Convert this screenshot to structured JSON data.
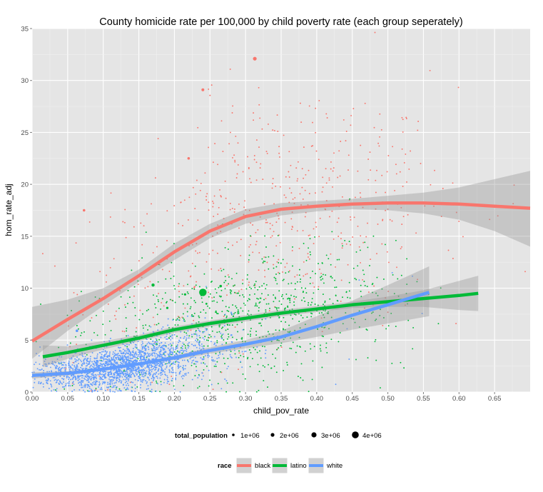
{
  "chart_data": {
    "type": "scatter",
    "title": "County homicide rate per 100,000 by child poverty rate  (each group seperately)",
    "xlabel": "child_pov_rate",
    "ylabel": "hom_rate_adj",
    "xlim": [
      0,
      0.7
    ],
    "ylim": [
      0,
      35
    ],
    "x_ticks": [
      "0.00",
      "0.05",
      "0.10",
      "0.15",
      "0.20",
      "0.25",
      "0.30",
      "0.35",
      "0.40",
      "0.45",
      "0.50",
      "0.55",
      "0.60",
      "0.65"
    ],
    "x_tick_values": [
      0,
      0.05,
      0.1,
      0.15,
      0.2,
      0.25,
      0.3,
      0.35,
      0.4,
      0.45,
      0.5,
      0.55,
      0.6,
      0.65
    ],
    "y_ticks": [
      "0",
      "5",
      "10",
      "15",
      "20",
      "25",
      "30",
      "35"
    ],
    "y_tick_values": [
      0,
      5,
      10,
      15,
      20,
      25,
      30,
      35
    ],
    "grid": true,
    "legend_placement": "bottom",
    "colors": {
      "black": "#F8766D",
      "latino": "#00BA38",
      "white": "#619CFF",
      "panel": "#E5E5E5",
      "ribbon": "#999999"
    },
    "series": [
      {
        "name": "black",
        "color": "#F8766D",
        "smooth": {
          "x": [
            0,
            0.05,
            0.1,
            0.15,
            0.2,
            0.25,
            0.3,
            0.35,
            0.4,
            0.45,
            0.5,
            0.55,
            0.6,
            0.65,
            0.7
          ],
          "y": [
            4.9,
            7.0,
            9.0,
            11.2,
            13.5,
            15.5,
            16.9,
            17.6,
            17.9,
            18.1,
            18.2,
            18.2,
            18.1,
            17.9,
            17.7
          ]
        },
        "band_lower": [
          3.2,
          5.9,
          8.3,
          10.6,
          12.7,
          14.8,
          16.2,
          17.0,
          17.4,
          17.6,
          17.5,
          17.2,
          16.6,
          15.5,
          14.0
        ],
        "band_upper": [
          8.2,
          8.9,
          10.0,
          11.8,
          14.3,
          16.2,
          17.6,
          18.2,
          18.4,
          18.6,
          18.9,
          19.2,
          19.7,
          20.5,
          21.3
        ],
        "highlights": [
          {
            "x": 0.313,
            "y": 32.1,
            "r": 2.6
          },
          {
            "x": 0.24,
            "y": 29.1,
            "r": 2.0
          },
          {
            "x": 0.22,
            "y": 22.5,
            "r": 1.8
          },
          {
            "x": 0.073,
            "y": 17.5,
            "r": 1.8
          }
        ]
      },
      {
        "name": "latino",
        "color": "#00BA38",
        "smooth": {
          "x": [
            0.015,
            0.05,
            0.1,
            0.15,
            0.2,
            0.25,
            0.3,
            0.35,
            0.4,
            0.45,
            0.5,
            0.55,
            0.6,
            0.627
          ],
          "y": [
            3.4,
            3.8,
            4.5,
            5.2,
            6.0,
            6.6,
            7.1,
            7.6,
            8.0,
            8.4,
            8.7,
            9.0,
            9.3,
            9.5
          ]
        },
        "band_lower": [
          2.4,
          3.2,
          4.1,
          4.9,
          5.7,
          6.3,
          6.8,
          7.3,
          7.7,
          8.1,
          8.2,
          8.2,
          7.9,
          7.8
        ],
        "band_upper": [
          4.5,
          4.4,
          4.9,
          5.5,
          6.3,
          6.9,
          7.4,
          7.9,
          8.3,
          8.7,
          9.2,
          9.8,
          10.7,
          11.2
        ],
        "highlights": [
          {
            "x": 0.24,
            "y": 9.6,
            "r": 5.2
          },
          {
            "x": 0.17,
            "y": 10.3,
            "r": 2.2
          },
          {
            "x": 0.265,
            "y": 10.2,
            "r": 1.8
          },
          {
            "x": 0.268,
            "y": 16.1,
            "r": 1.6
          },
          {
            "x": 0.215,
            "y": 9.4,
            "r": 1.6
          },
          {
            "x": 0.19,
            "y": 8.1,
            "r": 1.6
          },
          {
            "x": 0.245,
            "y": 8.5,
            "r": 1.4
          },
          {
            "x": 0.175,
            "y": 4.6,
            "r": 1.5
          }
        ]
      },
      {
        "name": "white",
        "color": "#619CFF",
        "smooth": {
          "x": [
            0,
            0.05,
            0.1,
            0.15,
            0.2,
            0.25,
            0.3,
            0.35,
            0.4,
            0.45,
            0.5,
            0.558
          ],
          "y": [
            1.6,
            1.8,
            2.2,
            2.7,
            3.3,
            4.0,
            4.6,
            5.3,
            6.3,
            7.4,
            8.4,
            9.6
          ]
        },
        "band_lower": [
          1.3,
          1.6,
          2.1,
          2.6,
          3.1,
          3.7,
          4.2,
          4.7,
          5.3,
          6.0,
          6.6,
          7.3
        ],
        "band_upper": [
          1.9,
          2.0,
          2.3,
          2.8,
          3.5,
          4.3,
          5.0,
          5.9,
          7.3,
          8.8,
          10.3,
          12.1
        ],
        "highlights": [
          {
            "x": 0.063,
            "y": 5.9,
            "r": 1.8
          },
          {
            "x": 0.09,
            "y": 2.8,
            "r": 1.6
          },
          {
            "x": 0.125,
            "y": 3.2,
            "r": 1.5
          }
        ]
      }
    ],
    "size_legend": {
      "title": "total_population",
      "labels": [
        "1e+06",
        "2e+06",
        "3e+06",
        "4e+06"
      ],
      "values": [
        1000000,
        2000000,
        3000000,
        4000000
      ]
    },
    "color_legend": {
      "title": "race",
      "labels": [
        "black",
        "latino",
        "white"
      ]
    }
  }
}
